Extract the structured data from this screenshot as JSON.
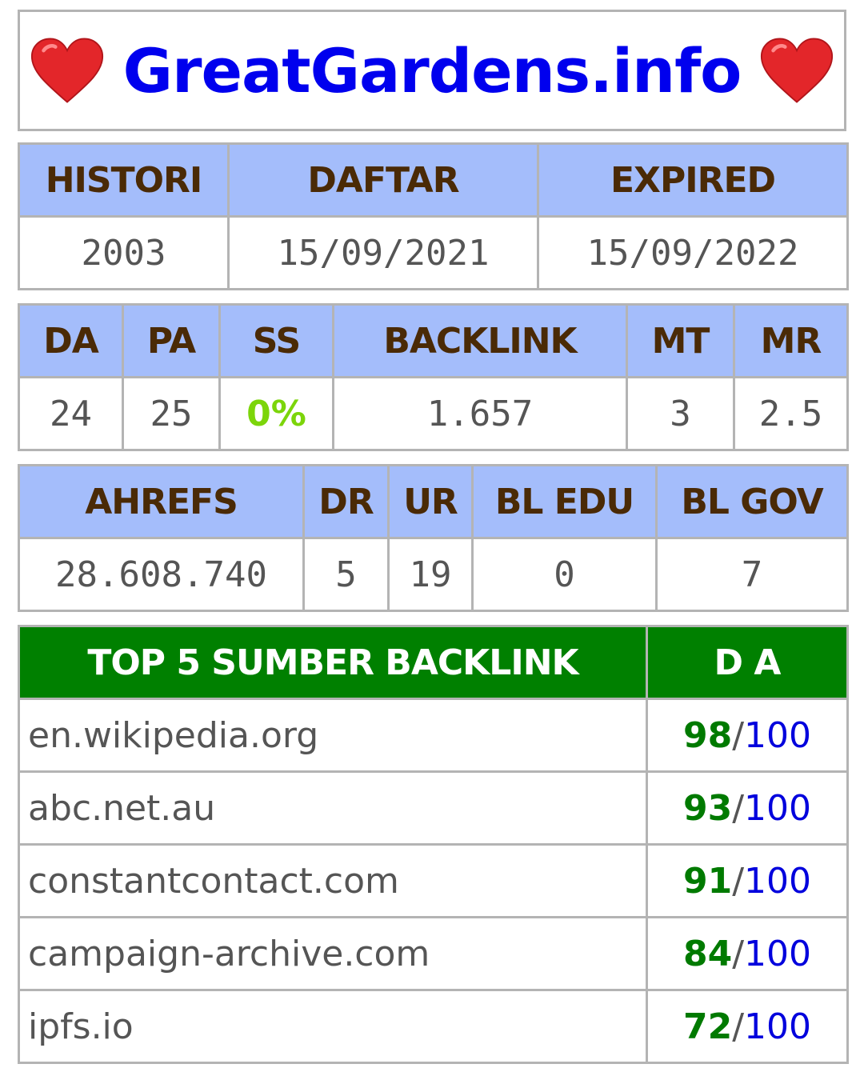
{
  "header": {
    "title": "GreatGardens.info",
    "left_icon": "heart-icon",
    "right_icon": "heart-icon",
    "heart_color": "#e3262a"
  },
  "domain_dates": {
    "headers": [
      "HISTORI",
      "DAFTAR",
      "EXPIRED"
    ],
    "values": [
      "2003",
      "15/09/2021",
      "15/09/2022"
    ]
  },
  "moz_metrics": {
    "headers": [
      "DA",
      "PA",
      "SS",
      "BACKLINK",
      "MT",
      "MR"
    ],
    "values": [
      "24",
      "25",
      "0%",
      "1.657",
      "3",
      "2.5"
    ]
  },
  "ahrefs_metrics": {
    "headers": [
      "AHREFS",
      "DR",
      "UR",
      "BL EDU",
      "BL GOV"
    ],
    "values": [
      "28.608.740",
      "5",
      "19",
      "0",
      "7"
    ]
  },
  "top_backlinks": {
    "headers": [
      "TOP 5 SUMBER BACKLINK",
      "D A"
    ],
    "rows": [
      {
        "site": "en.wikipedia.org",
        "score": "98",
        "max": "100"
      },
      {
        "site": "abc.net.au",
        "score": "93",
        "max": "100"
      },
      {
        "site": "constantcontact.com",
        "score": "91",
        "max": "100"
      },
      {
        "site": "campaign-archive.com",
        "score": "84",
        "max": "100"
      },
      {
        "site": "ipfs.io",
        "score": "72",
        "max": "100"
      }
    ],
    "separator": "/"
  },
  "colors": {
    "header_bg": "#a4bdfb",
    "header_text": "#4a2a06",
    "title": "#0000ee",
    "green_header": "#008000",
    "score_green": "#007a00",
    "ss_green": "#7cd50a"
  }
}
